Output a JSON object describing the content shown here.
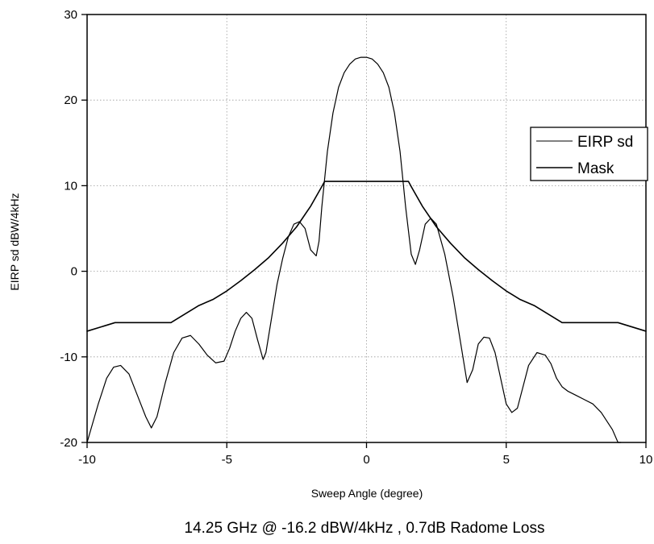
{
  "chart_data": {
    "type": "line",
    "caption": "14.25 GHz @ -16.2 dBW/4kHz , 0.7dB Radome Loss",
    "xlabel": "Sweep Angle (degree)",
    "ylabel": "EIRP sd dBW/4kHz",
    "xlim": [
      -10,
      10
    ],
    "ylim": [
      -20,
      30
    ],
    "xticks": [
      -10,
      -5,
      0,
      5,
      10
    ],
    "yticks": [
      -20,
      -10,
      0,
      10,
      20,
      30
    ],
    "grid": true,
    "legend": {
      "position": "right",
      "entries": [
        "EIRP sd",
        "Mask"
      ]
    },
    "series": [
      {
        "name": "EIRP sd",
        "color": "#000000",
        "x": [
          -10.0,
          -9.6,
          -9.3,
          -9.05,
          -8.8,
          -8.5,
          -8.2,
          -7.9,
          -7.7,
          -7.5,
          -7.2,
          -6.9,
          -6.6,
          -6.3,
          -6.0,
          -5.7,
          -5.4,
          -5.1,
          -4.9,
          -4.7,
          -4.5,
          -4.3,
          -4.1,
          -3.9,
          -3.7,
          -3.6,
          -3.4,
          -3.2,
          -3.0,
          -2.8,
          -2.6,
          -2.4,
          -2.2,
          -2.0,
          -1.8,
          -1.7,
          -1.6,
          -1.4,
          -1.2,
          -1.0,
          -0.8,
          -0.6,
          -0.4,
          -0.2,
          0.0,
          0.2,
          0.4,
          0.6,
          0.8,
          1.0,
          1.2,
          1.4,
          1.6,
          1.75,
          1.9,
          2.1,
          2.3,
          2.5,
          2.8,
          3.1,
          3.4,
          3.6,
          3.8,
          4.0,
          4.2,
          4.4,
          4.6,
          4.8,
          5.0,
          5.2,
          5.4,
          5.6,
          5.8,
          6.1,
          6.4,
          6.6,
          6.8,
          7.0,
          7.2,
          7.5,
          7.8,
          8.1,
          8.4,
          8.6,
          8.8,
          9.0,
          9.1
        ],
        "y": [
          -20.0,
          -15.5,
          -12.5,
          -11.2,
          -11.0,
          -12.0,
          -14.5,
          -17.0,
          -18.3,
          -17.0,
          -13.0,
          -9.5,
          -7.8,
          -7.5,
          -8.5,
          -9.8,
          -10.7,
          -10.5,
          -9.0,
          -7.0,
          -5.5,
          -4.8,
          -5.5,
          -8.0,
          -10.3,
          -9.5,
          -5.5,
          -1.5,
          1.5,
          4.0,
          5.5,
          5.8,
          5.0,
          2.5,
          1.8,
          3.5,
          7.5,
          14.0,
          18.5,
          21.5,
          23.2,
          24.2,
          24.8,
          25.0,
          25.0,
          24.8,
          24.2,
          23.2,
          21.5,
          18.5,
          14.0,
          7.5,
          2.0,
          0.8,
          2.5,
          5.5,
          6.2,
          5.5,
          2.0,
          -3.0,
          -9.0,
          -13.0,
          -11.5,
          -8.5,
          -7.7,
          -7.8,
          -9.5,
          -12.5,
          -15.5,
          -16.5,
          -16.0,
          -13.5,
          -11.0,
          -9.5,
          -9.8,
          -10.8,
          -12.5,
          -13.5,
          -14.0,
          -14.5,
          -15.0,
          -15.5,
          -16.5,
          -17.5,
          -18.5,
          -20.0,
          -20.0
        ]
      },
      {
        "name": "Mask",
        "color": "#000000",
        "x": [
          -10.0,
          -9.0,
          -8.5,
          -7.0,
          -6.5,
          -6.0,
          -5.5,
          -5.0,
          -4.5,
          -4.0,
          -3.5,
          -3.0,
          -2.5,
          -2.0,
          -1.6,
          -1.5,
          1.5,
          1.6,
          2.0,
          2.5,
          3.0,
          3.5,
          4.0,
          4.5,
          5.0,
          5.5,
          6.0,
          6.5,
          7.0,
          8.5,
          9.0,
          10.0
        ],
        "y": [
          -7.0,
          -6.0,
          -6.0,
          -6.0,
          -5.0,
          -4.0,
          -3.3,
          -2.3,
          -1.1,
          0.2,
          1.6,
          3.3,
          5.2,
          7.6,
          9.9,
          10.5,
          10.5,
          9.9,
          7.6,
          5.2,
          3.3,
          1.6,
          0.2,
          -1.1,
          -2.3,
          -3.3,
          -4.0,
          -5.0,
          -6.0,
          -6.0,
          -6.0,
          -7.0
        ]
      }
    ]
  }
}
